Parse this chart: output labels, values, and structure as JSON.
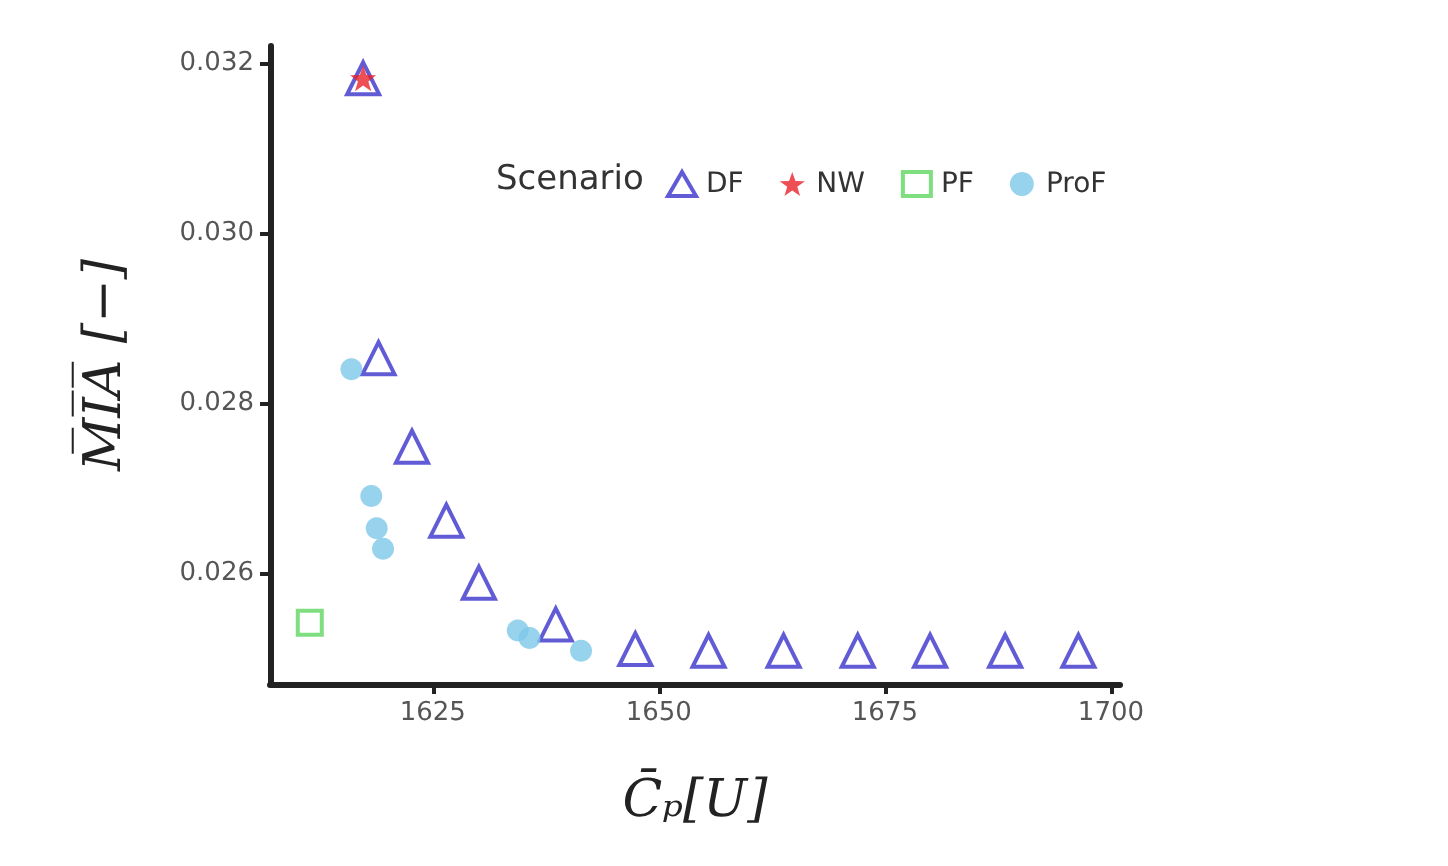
{
  "chart_data": {
    "type": "scatter",
    "xlabel": "C̄ₚ[U]",
    "ylabel": "M̅I̅A̅ [−]",
    "legend_title": "Scenario",
    "legend": "top right",
    "grid": false,
    "xlim": [
      1607,
      1701
    ],
    "xticks": [
      1625,
      1650,
      1675,
      1700
    ],
    "ylim": [
      0.0247,
      0.0322
    ],
    "yticks": [
      0.026,
      0.028,
      {
        "value": 0.03,
        "label": "0.030"
      },
      0.032
    ],
    "series": [
      {
        "name": "DF",
        "color": "#3a33cc",
        "marker": "triangle",
        "x": [
          1617.3,
          1619.0,
          1622.7,
          1626.5,
          1630.1,
          1638.6,
          1647.4,
          1655.5,
          1663.8,
          1672.0,
          1680.0,
          1688.3,
          1696.4
        ],
        "values": [
          0.03182,
          0.02853,
          0.02749,
          0.02662,
          0.02589,
          0.0254,
          0.02511,
          0.02509,
          0.02509,
          0.02509,
          0.02509,
          0.02509,
          0.02509
        ]
      },
      {
        "name": "NW",
        "color": "#e8232a",
        "marker": "star",
        "x": [
          1617.3
        ],
        "values": [
          0.03182
        ]
      },
      {
        "name": "PF",
        "color": "#5fd65f",
        "marker": "square",
        "x": [
          1611.4
        ],
        "values": [
          0.02542
        ]
      },
      {
        "name": "ProF",
        "color": "#7ec8e8",
        "marker": "circle",
        "x": [
          1616.0,
          1618.2,
          1618.8,
          1619.5,
          1634.4,
          1635.7,
          1641.4
        ],
        "values": [
          0.0284,
          0.02691,
          0.02653,
          0.02629,
          0.02533,
          0.02524,
          0.02509
        ]
      }
    ]
  }
}
